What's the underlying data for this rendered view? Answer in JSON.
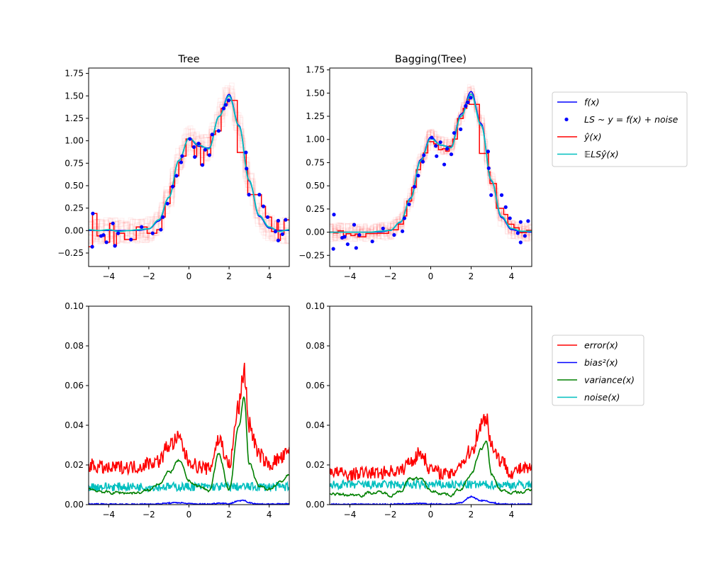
{
  "colors": {
    "f": "#0000ff",
    "ls": "#0000ff",
    "yhat": "#ff0000",
    "mean": "#00bfbf",
    "error": "#ff0000",
    "bias": "#0000ff",
    "variance": "#008000",
    "noise": "#00bfbf"
  },
  "legend_top": {
    "placement": "right",
    "entries": [
      "f(x)",
      "LS ~ y = f(x) + noise",
      "ŷ(x)",
      "𝔼LSŷ(x)"
    ]
  },
  "legend_bottom": {
    "placement": "right",
    "entries": [
      "error(x)",
      "bias²(x)",
      "variance(x)",
      "noise(x)"
    ]
  },
  "n_faint_estimates": 20,
  "chart_data": [
    {
      "type": "line",
      "title": "Tree",
      "xlim": [
        -5,
        5
      ],
      "ylim": [
        -0.4,
        1.81
      ],
      "xticks": [
        -4,
        -2,
        0,
        2,
        4
      ],
      "xtick_labels": [
        "−4",
        "−2",
        "0",
        "2",
        "4"
      ],
      "yticks": [
        -0.25,
        0,
        0.25,
        0.5,
        0.75,
        1,
        1.25,
        1.5,
        1.75
      ],
      "ytick_labels": [
        "−0.25",
        "0.00",
        "0.25",
        "0.50",
        "0.75",
        "1.00",
        "1.25",
        "1.50",
        "1.75"
      ],
      "x": [
        -5,
        -4.5,
        -4,
        -3.5,
        -3,
        -2.5,
        -2,
        -1.5,
        -1,
        -0.5,
        0,
        0.5,
        1,
        1.5,
        2,
        2.5,
        3,
        3.5,
        4,
        4.5,
        5
      ],
      "f": [
        0,
        0,
        0,
        0,
        0,
        0.002,
        0.018,
        0.105,
        0.368,
        0.782,
        1.027,
        0.937,
        0.92,
        1.273,
        1.518,
        1.17,
        0.552,
        0.158,
        0.027,
        0.003,
        0
      ],
      "mean_estimate": [
        0.01,
        0.0,
        0.01,
        -0.01,
        0.0,
        0.01,
        0.02,
        0.12,
        0.37,
        0.78,
        1.03,
        0.95,
        0.91,
        1.27,
        1.5,
        1.16,
        0.56,
        0.17,
        0.04,
        -0.01,
        0.01
      ],
      "ls_points": {
        "x": [
          -4.79,
          -4.82,
          -4.38,
          -4.26,
          -4.11,
          -3.79,
          -3.69,
          -3.53,
          -2.89,
          -2.36,
          -1.81,
          -1.4,
          -1.3,
          -1.07,
          -0.81,
          -0.62,
          -0.39,
          -0.34,
          0.05,
          0.25,
          0.29,
          0.48,
          0.67,
          0.81,
          1.02,
          1.16,
          1.48,
          1.73,
          1.84,
          1.98,
          2.84,
          2.87,
          2.99,
          3.51,
          3.71,
          3.92,
          4.31,
          4.45,
          4.45,
          4.66,
          4.82
        ],
        "y": [
          0.19,
          -0.18,
          -0.06,
          -0.05,
          -0.13,
          0.08,
          -0.17,
          -0.03,
          -0.1,
          0.04,
          -0.03,
          0.01,
          0.15,
          0.3,
          0.49,
          0.61,
          0.76,
          0.83,
          1.02,
          0.93,
          0.82,
          0.97,
          0.73,
          0.9,
          0.84,
          1.07,
          1.11,
          1.36,
          1.4,
          1.45,
          0.87,
          0.69,
          0.4,
          0.4,
          0.27,
          0.15,
          -0.01,
          0.11,
          -0.11,
          -0.04,
          0.12
        ]
      }
    },
    {
      "type": "line",
      "title": "Bagging(Tree)",
      "xlim": [
        -5,
        5
      ],
      "ylim": [
        -0.37,
        1.77
      ],
      "xticks": [
        -4,
        -2,
        0,
        2,
        4
      ],
      "xtick_labels": [
        "−4",
        "−2",
        "0",
        "2",
        "4"
      ],
      "yticks": [
        -0.25,
        0,
        0.25,
        0.5,
        0.75,
        1,
        1.25,
        1.5,
        1.75
      ],
      "ytick_labels": [
        "−0.25",
        "0.00",
        "0.25",
        "0.50",
        "0.75",
        "1.00",
        "1.25",
        "1.50",
        "1.75"
      ],
      "x": [
        -5,
        -4.5,
        -4,
        -3.5,
        -3,
        -2.5,
        -2,
        -1.5,
        -1,
        -0.5,
        0,
        0.5,
        1,
        1.5,
        2,
        2.5,
        3,
        3.5,
        4,
        4.5,
        5
      ],
      "f": [
        0,
        0,
        0,
        0,
        0,
        0.002,
        0.018,
        0.105,
        0.368,
        0.782,
        1.027,
        0.937,
        0.92,
        1.273,
        1.518,
        1.17,
        0.552,
        0.158,
        0.027,
        0.003,
        0
      ],
      "mean_estimate": [
        0.0,
        0.0,
        0.0,
        0.0,
        0.0,
        0.01,
        0.02,
        0.11,
        0.36,
        0.77,
        1.01,
        0.94,
        0.91,
        1.25,
        1.49,
        1.15,
        0.56,
        0.17,
        0.04,
        0.01,
        0.01
      ],
      "ls_points": {
        "x": [
          -4.79,
          -4.82,
          -4.38,
          -4.26,
          -4.11,
          -3.79,
          -3.69,
          -3.53,
          -2.89,
          -2.36,
          -1.81,
          -1.4,
          -1.3,
          -1.07,
          -0.81,
          -0.62,
          -0.39,
          -0.34,
          0.05,
          0.25,
          0.29,
          0.48,
          0.67,
          0.81,
          1.02,
          1.16,
          1.48,
          1.73,
          1.84,
          1.98,
          2.84,
          2.87,
          2.99,
          3.51,
          3.71,
          3.92,
          4.31,
          4.45,
          4.45,
          4.66,
          4.82
        ],
        "y": [
          0.19,
          -0.18,
          -0.06,
          -0.05,
          -0.13,
          0.08,
          -0.17,
          -0.03,
          -0.1,
          0.04,
          -0.03,
          0.01,
          0.15,
          0.3,
          0.49,
          0.61,
          0.76,
          0.83,
          1.02,
          0.93,
          0.82,
          0.97,
          0.73,
          0.9,
          0.84,
          1.07,
          1.11,
          1.36,
          1.4,
          1.45,
          0.87,
          0.69,
          0.4,
          0.4,
          0.27,
          0.15,
          -0.01,
          0.11,
          -0.11,
          -0.04,
          0.12
        ]
      }
    },
    {
      "type": "line",
      "title": "",
      "xlim": [
        -5,
        5
      ],
      "ylim": [
        0,
        0.1
      ],
      "xticks": [
        -4,
        -2,
        0,
        2,
        4
      ],
      "xtick_labels": [
        "−4",
        "−2",
        "0",
        "2",
        "4"
      ],
      "yticks": [
        0,
        0.02,
        0.04,
        0.06,
        0.08,
        0.1
      ],
      "ytick_labels": [
        "0.00",
        "0.02",
        "0.04",
        "0.06",
        "0.08",
        "0.10"
      ],
      "x": [
        -5,
        -4.5,
        -4,
        -3.5,
        -3,
        -2.5,
        -2,
        -1.5,
        -1,
        -0.5,
        0,
        0.5,
        1,
        1.5,
        2,
        2.5,
        2.75,
        3,
        3.5,
        4,
        4.5,
        5
      ],
      "series": [
        {
          "name": "error(x)",
          "values": [
            0.02,
            0.019,
            0.018,
            0.019,
            0.019,
            0.019,
            0.021,
            0.022,
            0.03,
            0.033,
            0.022,
            0.019,
            0.018,
            0.033,
            0.02,
            0.05,
            0.068,
            0.04,
            0.025,
            0.02,
            0.023,
            0.026
          ]
        },
        {
          "name": "bias²(x)",
          "values": [
            0.0003,
            0.0003,
            0.0002,
            0.0002,
            0.0002,
            0.0002,
            0.0003,
            0.0004,
            0.0008,
            0.001,
            0.0005,
            0.0003,
            0.0003,
            0.0008,
            0.0005,
            0.002,
            0.002,
            0.001,
            0.0003,
            0.0003,
            0.0003,
            0.0004
          ]
        },
        {
          "name": "variance(x)",
          "values": [
            0.008,
            0.007,
            0.006,
            0.006,
            0.006,
            0.006,
            0.007,
            0.011,
            0.016,
            0.022,
            0.012,
            0.009,
            0.007,
            0.025,
            0.008,
            0.04,
            0.055,
            0.02,
            0.009,
            0.008,
            0.011,
            0.015
          ]
        },
        {
          "name": "noise(x)",
          "values": [
            0.009,
            0.009,
            0.009,
            0.009,
            0.009,
            0.009,
            0.009,
            0.009,
            0.009,
            0.009,
            0.009,
            0.009,
            0.009,
            0.009,
            0.009,
            0.009,
            0.009,
            0.009,
            0.009,
            0.009,
            0.009,
            0.009
          ]
        }
      ]
    },
    {
      "type": "line",
      "title": "",
      "xlim": [
        -5,
        5
      ],
      "ylim": [
        0,
        0.1
      ],
      "xticks": [
        -4,
        -2,
        0,
        2,
        4
      ],
      "xtick_labels": [
        "−4",
        "−2",
        "0",
        "2",
        "4"
      ],
      "yticks": [
        0,
        0.02,
        0.04,
        0.06,
        0.08,
        0.1
      ],
      "ytick_labels": [
        "0.00",
        "0.02",
        "0.04",
        "0.06",
        "0.08",
        "0.10"
      ],
      "x": [
        -5,
        -4.5,
        -4,
        -3.5,
        -3,
        -2.5,
        -2,
        -1.5,
        -1,
        -0.5,
        0,
        0.5,
        1,
        1.5,
        2,
        2.5,
        2.75,
        3,
        3.5,
        4,
        4.5,
        5
      ],
      "series": [
        {
          "name": "error(x)",
          "values": [
            0.017,
            0.016,
            0.015,
            0.016,
            0.016,
            0.016,
            0.017,
            0.017,
            0.022,
            0.026,
            0.018,
            0.016,
            0.015,
            0.021,
            0.027,
            0.04,
            0.045,
            0.03,
            0.022,
            0.016,
            0.018,
            0.018
          ]
        },
        {
          "name": "bias²(x)",
          "values": [
            0.0002,
            0.0002,
            0.0002,
            0.0002,
            0.0002,
            0.0002,
            0.0002,
            0.0003,
            0.0005,
            0.0005,
            0.0003,
            0.0002,
            0.0002,
            0.001,
            0.004,
            0.002,
            0.002,
            0.001,
            0.0003,
            0.0002,
            0.0002,
            0.0002
          ]
        },
        {
          "name": "variance(x)",
          "values": [
            0.006,
            0.005,
            0.005,
            0.005,
            0.006,
            0.006,
            0.005,
            0.007,
            0.013,
            0.013,
            0.007,
            0.006,
            0.005,
            0.008,
            0.015,
            0.028,
            0.032,
            0.015,
            0.007,
            0.006,
            0.006,
            0.008
          ]
        },
        {
          "name": "noise(x)",
          "values": [
            0.01,
            0.01,
            0.01,
            0.01,
            0.01,
            0.01,
            0.01,
            0.01,
            0.01,
            0.01,
            0.01,
            0.01,
            0.01,
            0.01,
            0.01,
            0.01,
            0.01,
            0.01,
            0.01,
            0.01,
            0.01,
            0.01
          ]
        }
      ]
    }
  ]
}
